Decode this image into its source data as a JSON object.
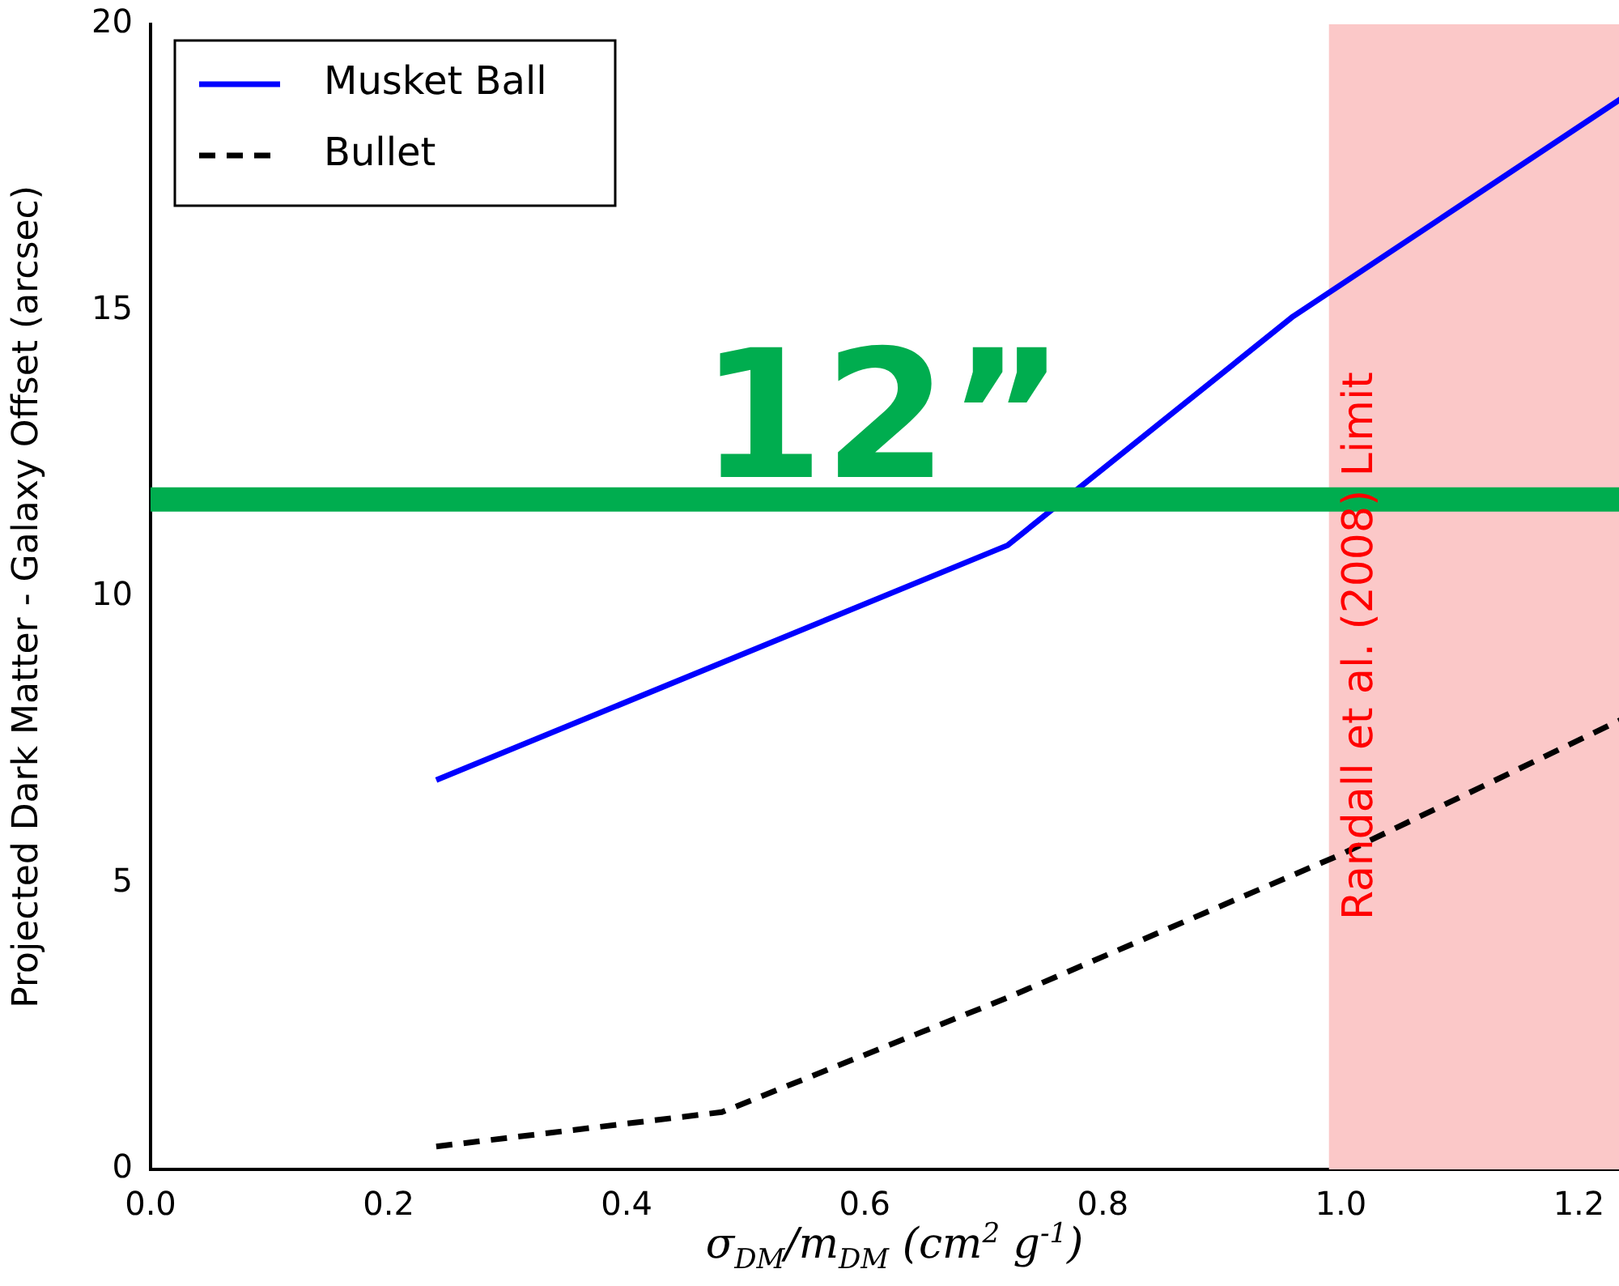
{
  "chart_data": {
    "type": "line",
    "xlabel": "σ$_{DM}$/m$_{DM}$ (cm$^{2}$ g$^{-1}$)",
    "ylabel": "Projected Dark Matter - Galaxy Offset (arcsec)",
    "xlim": [
      0,
      1.25
    ],
    "xticks": [
      {
        "value": 0,
        "label": "0.0"
      },
      {
        "value": 0.2,
        "label": "0.2"
      },
      {
        "value": 0.4,
        "label": "0.4"
      },
      {
        "value": 0.6,
        "label": "0.6"
      },
      {
        "value": 0.8,
        "label": "0.8"
      },
      {
        "value": 1,
        "label": "1.0"
      },
      {
        "value": 1.2,
        "label": "1.2"
      }
    ],
    "ylim": [
      0,
      20
    ],
    "yticks": [
      0,
      5,
      10,
      15,
      20
    ],
    "grid": false,
    "legend": "top left",
    "series": [
      {
        "name": "Musket Ball",
        "color": "#0000ff",
        "line_style": "solid",
        "x": [
          0.24,
          0.72,
          0.96,
          1.25
        ],
        "values": [
          6.8,
          10.9,
          14.9,
          18.9
        ]
      },
      {
        "name": "Bullet",
        "color": "#000000",
        "line_style": "dashed",
        "x": [
          0.24,
          0.48,
          0.72,
          1.0,
          1.25
        ],
        "values": [
          0.4,
          1.0,
          3.0,
          5.5,
          8.0
        ]
      }
    ],
    "ref_lines": [
      {
        "axis": "y",
        "value": 11.7,
        "label": "12”",
        "color": "#00ad4f"
      }
    ],
    "bands": [
      {
        "axis": "x",
        "from": 0.99,
        "to": 1.25,
        "label": "Randall et al. (2008) Limit",
        "color": "#fbc8c8"
      }
    ]
  }
}
